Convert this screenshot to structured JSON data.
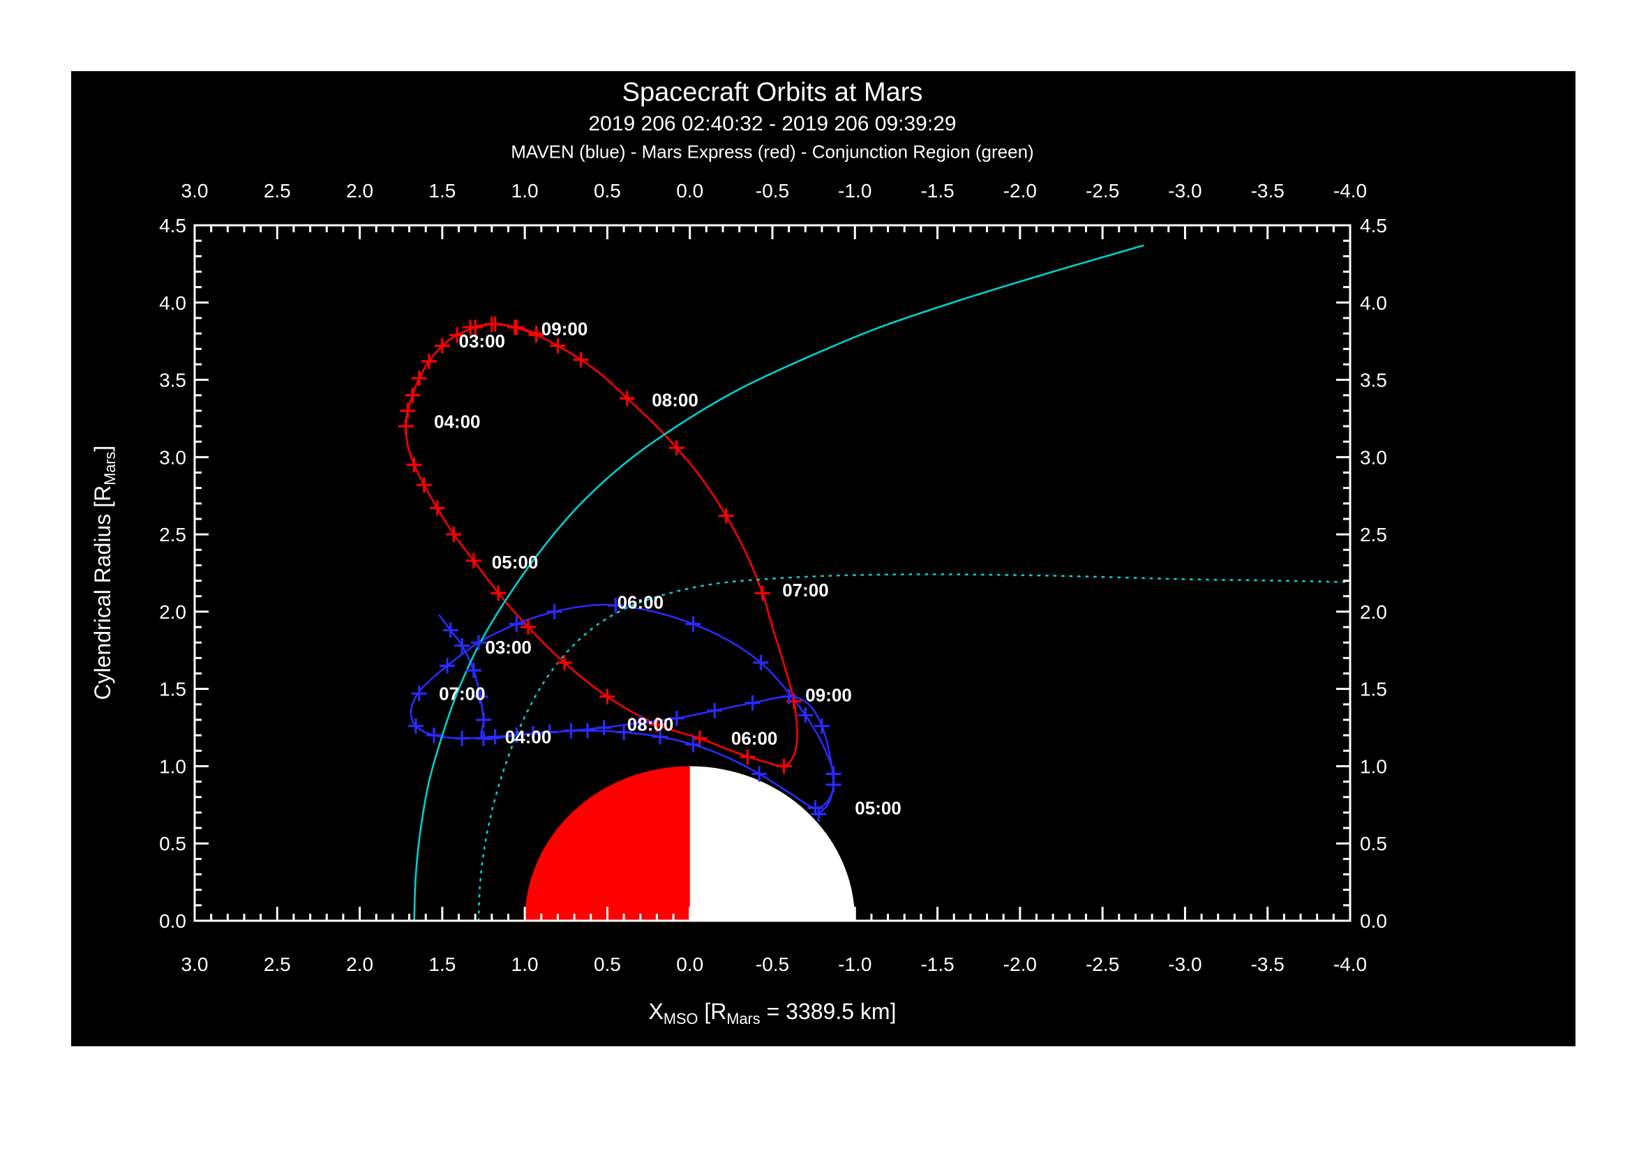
{
  "header": {
    "title": "Spacecraft Orbits at Mars",
    "subtitle": "2019 206 02:40:32 - 2019 206 09:39:29",
    "legend": "MAVEN (blue) - Mars Express (red) - Conjunction Region (green)"
  },
  "axes": {
    "y": {
      "part1": "Cylendrical Radius [R",
      "sub1": "Mars",
      "part2": "]"
    },
    "x": {
      "part1": "X",
      "sub1": "MSO",
      "part2": " [R",
      "sub2": "Mars",
      "part3": " = 3389.5 km]"
    }
  },
  "colors": {
    "background": "#000000",
    "page": "#ffffff",
    "frame": "#ffffff",
    "maven_blue": "#2a2aff",
    "mex_red": "#ff0000",
    "boundary_cyan": "#00d0d0",
    "mars_day": "#ff0000",
    "mars_night": "#ffffff"
  },
  "chart_data": {
    "type": "line",
    "title": "Spacecraft Orbits at Mars",
    "subtitle": "2019 206 02:40:32 - 2019 206 09:39:29",
    "legend_text": "MAVEN (blue) - Mars Express (red) - Conjunction Region (green)",
    "xlabel": "X_MSO [R_Mars = 3389.5 km]",
    "ylabel": "Cylendrical Radius [R_Mars]",
    "xlim": [
      3.0,
      -4.0
    ],
    "ylim": [
      0.0,
      4.5
    ],
    "x_ticks": [
      "3.0",
      "2.5",
      "2.0",
      "1.5",
      "1.0",
      "0.5",
      "0.0",
      "-0.5",
      "-1.0",
      "-1.5",
      "-2.0",
      "-2.5",
      "-3.0",
      "-3.5",
      "-4.0"
    ],
    "y_ticks": [
      "0.0",
      "0.5",
      "1.0",
      "1.5",
      "2.0",
      "2.5",
      "3.0",
      "3.5",
      "4.0",
      "4.5"
    ],
    "minor_tick_step": 0.1,
    "grid": false,
    "mars": {
      "radius": 1.0,
      "day_color": "#ff0000",
      "night_color": "#ffffff"
    },
    "series": [
      {
        "name": "Mars Express",
        "color": "#ff0000",
        "style": "solid",
        "marker": "+",
        "points": [
          [
            0.93,
            3.8
          ],
          [
            1.05,
            3.84
          ],
          [
            1.18,
            3.86
          ],
          [
            1.3,
            3.84
          ],
          [
            1.41,
            3.79
          ],
          [
            1.5,
            3.72
          ],
          [
            1.58,
            3.62
          ],
          [
            1.64,
            3.51
          ],
          [
            1.68,
            3.4
          ],
          [
            1.71,
            3.3
          ],
          [
            1.72,
            3.2
          ],
          [
            1.71,
            3.08
          ],
          [
            1.67,
            2.95
          ],
          [
            1.61,
            2.82
          ],
          [
            1.53,
            2.67
          ],
          [
            1.43,
            2.5
          ],
          [
            1.31,
            2.33
          ],
          [
            1.16,
            2.12
          ],
          [
            0.98,
            1.9
          ],
          [
            0.76,
            1.67
          ],
          [
            0.5,
            1.45
          ],
          [
            0.2,
            1.27
          ],
          [
            -0.06,
            1.18
          ],
          [
            -0.3,
            1.08
          ],
          [
            -0.48,
            1.02
          ],
          [
            -0.57,
            1.0
          ],
          [
            -0.63,
            1.07
          ],
          [
            -0.65,
            1.2
          ],
          [
            -0.63,
            1.42
          ],
          [
            -0.57,
            1.66
          ],
          [
            -0.5,
            1.9
          ],
          [
            -0.44,
            2.12
          ],
          [
            -0.34,
            2.38
          ],
          [
            -0.22,
            2.62
          ],
          [
            -0.08,
            2.85
          ],
          [
            0.08,
            3.06
          ],
          [
            0.24,
            3.24
          ],
          [
            0.38,
            3.38
          ],
          [
            0.52,
            3.52
          ],
          [
            0.66,
            3.63
          ],
          [
            0.8,
            3.72
          ],
          [
            0.93,
            3.79
          ],
          [
            1.06,
            3.84
          ],
          [
            1.2,
            3.86
          ],
          [
            1.33,
            3.84
          ]
        ],
        "tick_marks": [
          [
            0.93,
            3.8
          ],
          [
            1.05,
            3.84
          ],
          [
            1.18,
            3.86
          ],
          [
            1.3,
            3.84
          ],
          [
            1.41,
            3.79
          ],
          [
            1.5,
            3.72
          ],
          [
            1.58,
            3.62
          ],
          [
            1.64,
            3.51
          ],
          [
            1.68,
            3.4
          ],
          [
            1.71,
            3.3
          ],
          [
            1.72,
            3.2
          ],
          [
            1.67,
            2.95
          ],
          [
            1.61,
            2.82
          ],
          [
            1.53,
            2.67
          ],
          [
            1.43,
            2.5
          ],
          [
            1.31,
            2.33
          ],
          [
            1.16,
            2.12
          ],
          [
            0.98,
            1.9
          ],
          [
            0.76,
            1.67
          ],
          [
            0.5,
            1.45
          ],
          [
            0.2,
            1.27
          ],
          [
            -0.06,
            1.18
          ],
          [
            -0.35,
            1.06
          ],
          [
            -0.57,
            1.0
          ],
          [
            -0.63,
            1.42
          ],
          [
            -0.44,
            2.12
          ],
          [
            -0.22,
            2.62
          ],
          [
            0.08,
            3.06
          ],
          [
            0.38,
            3.38
          ],
          [
            0.66,
            3.63
          ],
          [
            0.8,
            3.72
          ],
          [
            0.93,
            3.79
          ],
          [
            1.06,
            3.84
          ],
          [
            1.2,
            3.86
          ],
          [
            1.33,
            3.84
          ]
        ]
      },
      {
        "name": "MAVEN",
        "color": "#2a2aff",
        "style": "solid",
        "marker": "+",
        "points": [
          [
            1.52,
            1.98
          ],
          [
            1.45,
            1.88
          ],
          [
            1.38,
            1.78
          ],
          [
            1.31,
            1.62
          ],
          [
            1.27,
            1.45
          ],
          [
            1.25,
            1.3
          ],
          [
            1.25,
            1.18
          ],
          [
            1.05,
            1.2
          ],
          [
            0.85,
            1.22
          ],
          [
            0.62,
            1.23
          ],
          [
            0.4,
            1.22
          ],
          [
            0.18,
            1.19
          ],
          [
            -0.02,
            1.14
          ],
          [
            -0.22,
            1.06
          ],
          [
            -0.42,
            0.95
          ],
          [
            -0.6,
            0.83
          ],
          [
            -0.76,
            0.73
          ],
          [
            -0.85,
            0.8
          ],
          [
            -0.87,
            0.95
          ],
          [
            -0.8,
            1.15
          ],
          [
            -0.7,
            1.33
          ],
          [
            -0.58,
            1.5
          ],
          [
            -0.43,
            1.67
          ],
          [
            -0.24,
            1.81
          ],
          [
            -0.02,
            1.92
          ],
          [
            0.22,
            2.0
          ],
          [
            0.45,
            2.04
          ],
          [
            0.6,
            2.04
          ],
          [
            0.82,
            2.0
          ],
          [
            1.05,
            1.92
          ],
          [
            1.28,
            1.8
          ],
          [
            1.47,
            1.65
          ],
          [
            1.6,
            1.53
          ],
          [
            1.66,
            1.45
          ],
          [
            1.69,
            1.35
          ],
          [
            1.66,
            1.26
          ],
          [
            1.55,
            1.2
          ],
          [
            1.38,
            1.18
          ],
          [
            1.18,
            1.19
          ],
          [
            0.95,
            1.21
          ],
          [
            0.72,
            1.23
          ],
          [
            0.52,
            1.25
          ],
          [
            0.3,
            1.28
          ],
          [
            0.08,
            1.31
          ],
          [
            -0.15,
            1.36
          ],
          [
            -0.38,
            1.41
          ],
          [
            -0.6,
            1.45
          ],
          [
            -0.72,
            1.4
          ],
          [
            -0.8,
            1.26
          ],
          [
            -0.85,
            1.06
          ],
          [
            -0.87,
            0.88
          ],
          [
            -0.84,
            0.76
          ],
          [
            -0.78,
            0.69
          ]
        ],
        "tick_marks": [
          [
            1.45,
            1.88
          ],
          [
            1.38,
            1.78
          ],
          [
            1.31,
            1.62
          ],
          [
            1.27,
            1.45
          ],
          [
            1.25,
            1.3
          ],
          [
            1.25,
            1.18
          ],
          [
            1.05,
            1.2
          ],
          [
            0.85,
            1.22
          ],
          [
            0.62,
            1.23
          ],
          [
            0.4,
            1.22
          ],
          [
            0.18,
            1.19
          ],
          [
            -0.02,
            1.14
          ],
          [
            -0.42,
            0.95
          ],
          [
            -0.76,
            0.73
          ],
          [
            -0.87,
            0.95
          ],
          [
            -0.7,
            1.33
          ],
          [
            -0.43,
            1.67
          ],
          [
            -0.02,
            1.92
          ],
          [
            0.45,
            2.04
          ],
          [
            0.82,
            2.0
          ],
          [
            1.05,
            1.92
          ],
          [
            1.28,
            1.8
          ],
          [
            1.47,
            1.65
          ],
          [
            1.64,
            1.47
          ],
          [
            1.66,
            1.26
          ],
          [
            1.55,
            1.2
          ],
          [
            1.38,
            1.18
          ],
          [
            1.18,
            1.19
          ],
          [
            0.95,
            1.21
          ],
          [
            0.72,
            1.23
          ],
          [
            0.52,
            1.25
          ],
          [
            0.3,
            1.28
          ],
          [
            0.08,
            1.31
          ],
          [
            -0.15,
            1.36
          ],
          [
            -0.38,
            1.41
          ],
          [
            -0.6,
            1.45
          ],
          [
            -0.8,
            1.26
          ],
          [
            -0.87,
            0.88
          ],
          [
            -0.78,
            0.69
          ]
        ]
      },
      {
        "name": "boundary-solid",
        "color": "#00d0d0",
        "style": "solid",
        "points": [
          [
            1.67,
            0.0
          ],
          [
            1.66,
            0.3
          ],
          [
            1.63,
            0.6
          ],
          [
            1.58,
            0.9
          ],
          [
            1.5,
            1.2
          ],
          [
            1.4,
            1.5
          ],
          [
            1.27,
            1.8
          ],
          [
            1.1,
            2.1
          ],
          [
            0.9,
            2.4
          ],
          [
            0.66,
            2.7
          ],
          [
            0.37,
            2.98
          ],
          [
            0.05,
            3.22
          ],
          [
            -0.3,
            3.44
          ],
          [
            -0.7,
            3.64
          ],
          [
            -1.15,
            3.84
          ],
          [
            -1.65,
            4.02
          ],
          [
            -2.2,
            4.2
          ],
          [
            -2.75,
            4.37
          ]
        ]
      },
      {
        "name": "boundary-dotted",
        "color": "#00d0d0",
        "style": "dotted",
        "points": [
          [
            1.28,
            0.0
          ],
          [
            1.27,
            0.25
          ],
          [
            1.24,
            0.5
          ],
          [
            1.19,
            0.75
          ],
          [
            1.12,
            1.0
          ],
          [
            1.03,
            1.25
          ],
          [
            0.91,
            1.5
          ],
          [
            0.76,
            1.72
          ],
          [
            0.58,
            1.9
          ],
          [
            0.37,
            2.03
          ],
          [
            0.12,
            2.12
          ],
          [
            -0.15,
            2.18
          ],
          [
            -0.45,
            2.21
          ],
          [
            -0.8,
            2.23
          ],
          [
            -1.2,
            2.24
          ],
          [
            -1.7,
            2.24
          ],
          [
            -2.3,
            2.23
          ],
          [
            -3.0,
            2.21
          ],
          [
            -3.6,
            2.2
          ],
          [
            -4.0,
            2.19
          ]
        ]
      }
    ],
    "annotations": [
      {
        "text": "03:00",
        "x": 1.4,
        "y": 3.75,
        "color": "#ff0000",
        "series": "Mars Express"
      },
      {
        "text": "09:00",
        "x": 0.9,
        "y": 3.83,
        "color": "#ff0000",
        "series": "Mars Express"
      },
      {
        "text": "04:00",
        "x": 1.55,
        "y": 3.23,
        "color": "#ff0000",
        "series": "Mars Express"
      },
      {
        "text": "08:00",
        "x": 0.23,
        "y": 3.37,
        "color": "#ff0000",
        "series": "Mars Express"
      },
      {
        "text": "05:00",
        "x": 1.2,
        "y": 2.32,
        "color": "#ff0000",
        "series": "Mars Express"
      },
      {
        "text": "07:00",
        "x": -0.56,
        "y": 2.14,
        "color": "#ff0000",
        "series": "Mars Express"
      },
      {
        "text": "06:00",
        "x": -0.25,
        "y": 1.18,
        "color": "#ff0000",
        "series": "Mars Express"
      },
      {
        "text": "03:00",
        "x": 1.24,
        "y": 1.77,
        "color": "#2a2aff",
        "series": "MAVEN"
      },
      {
        "text": "06:00",
        "x": 0.44,
        "y": 2.06,
        "color": "#2a2aff",
        "series": "MAVEN"
      },
      {
        "text": "07:00",
        "x": 1.52,
        "y": 1.47,
        "color": "#2a2aff",
        "series": "MAVEN"
      },
      {
        "text": "04:00",
        "x": 1.12,
        "y": 1.19,
        "color": "#2a2aff",
        "series": "MAVEN"
      },
      {
        "text": "08:00",
        "x": 0.38,
        "y": 1.27,
        "color": "#2a2aff",
        "series": "MAVEN"
      },
      {
        "text": "09:00",
        "x": -0.7,
        "y": 1.46,
        "color": "#2a2aff",
        "series": "MAVEN"
      },
      {
        "text": "05:00",
        "x": -1.0,
        "y": 0.73,
        "color": "#2a2aff",
        "series": "MAVEN"
      }
    ]
  }
}
